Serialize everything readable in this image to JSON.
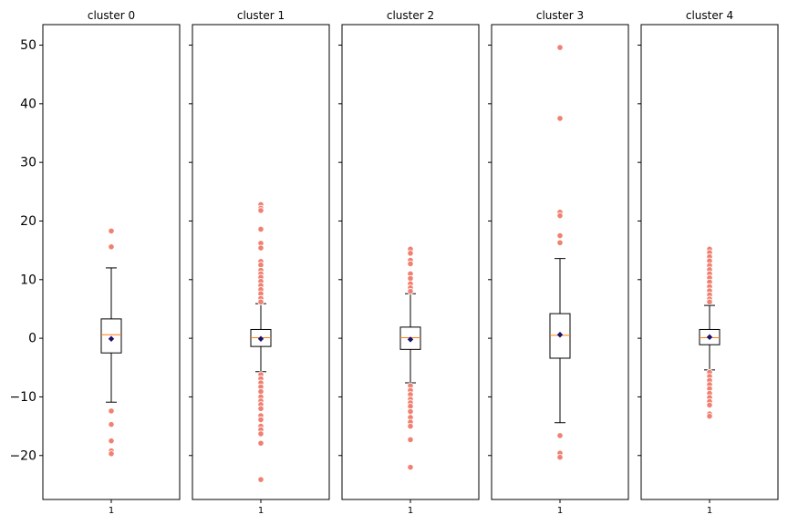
{
  "chart_data": {
    "type": "boxplot",
    "ylim": [
      -27.5,
      53.5
    ],
    "yticks": [
      -20,
      -10,
      0,
      10,
      20,
      30,
      40,
      50
    ],
    "ytick_labels": [
      "−20",
      "−10",
      "0",
      "10",
      "20",
      "30",
      "40",
      "50"
    ],
    "sharey": true,
    "grid": false,
    "colors": {
      "box": "#000000",
      "median": "#ff7f0e",
      "mean": "#1a1070",
      "flier": "#f08070"
    },
    "panels": [
      {
        "title": "cluster 0",
        "xtick": "1",
        "whisker_low": -10.9,
        "q1": -2.5,
        "median": 0.6,
        "q3": 3.3,
        "whisker_high": 12.0,
        "mean": -0.1,
        "fliers": [
          18.3,
          15.6,
          -12.4,
          -14.7,
          -17.5,
          -19.2,
          -19.7
        ]
      },
      {
        "title": "cluster 1",
        "xtick": "1",
        "whisker_low": -5.7,
        "q1": -1.4,
        "median": 0.1,
        "q3": 1.5,
        "whisker_high": 5.9,
        "mean": -0.1,
        "fliers": [
          22.8,
          22.2,
          21.8,
          18.6,
          16.2,
          15.4,
          13.1,
          12.5,
          11.6,
          11.0,
          10.4,
          9.7,
          9.0,
          8.3,
          7.6,
          6.8,
          6.2,
          -6.2,
          -6.9,
          -7.6,
          -8.3,
          -9.1,
          -10.0,
          -10.7,
          -11.3,
          -12.0,
          -13.2,
          -13.9,
          -15.0,
          -15.6,
          -16.3,
          -17.9,
          -24.1
        ]
      },
      {
        "title": "cluster 2",
        "xtick": "1",
        "whisker_low": -7.6,
        "q1": -1.9,
        "median": 0.1,
        "q3": 1.9,
        "whisker_high": 7.6,
        "mean": -0.2,
        "fliers": [
          15.2,
          14.5,
          13.3,
          12.7,
          11.0,
          10.2,
          9.3,
          8.6,
          8.0,
          -8.1,
          -8.9,
          -9.6,
          -10.4,
          -11.0,
          -11.6,
          -12.5,
          -13.5,
          -14.3,
          -15.0,
          -17.3,
          -22.0
        ]
      },
      {
        "title": "cluster 3",
        "xtick": "1",
        "whisker_low": -14.4,
        "q1": -3.4,
        "median": 0.5,
        "q3": 4.2,
        "whisker_high": 13.6,
        "mean": 0.6,
        "fliers": [
          49.6,
          37.5,
          21.5,
          20.9,
          17.5,
          16.3,
          -16.6,
          -19.6,
          -20.3
        ]
      },
      {
        "title": "cluster 4",
        "xtick": "1",
        "whisker_low": -5.4,
        "q1": -1.1,
        "median": 0.1,
        "q3": 1.5,
        "whisker_high": 5.6,
        "mean": 0.2,
        "fliers": [
          15.2,
          14.6,
          13.9,
          13.2,
          12.4,
          11.7,
          11.0,
          10.3,
          9.6,
          8.8,
          8.1,
          7.4,
          6.7,
          6.2,
          -5.8,
          -6.5,
          -7.2,
          -7.9,
          -8.6,
          -9.4,
          -10.1,
          -10.8,
          -11.4,
          -12.9,
          -13.3
        ]
      }
    ]
  }
}
